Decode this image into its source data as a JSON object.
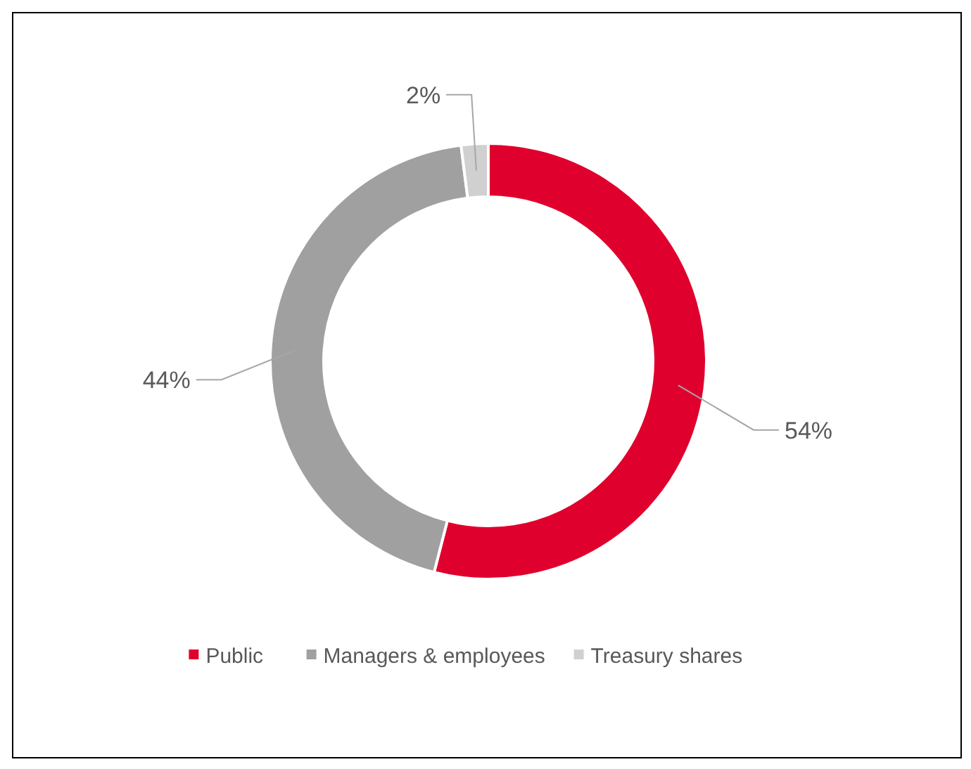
{
  "chart_data": {
    "type": "donut",
    "categories": [
      "Public",
      "Managers & employees",
      "Treasury shares"
    ],
    "values": [
      54,
      44,
      2
    ],
    "colors": [
      "#e0002d",
      "#a0a0a0",
      "#d0d0d0"
    ],
    "value_labels": [
      "54%",
      "44%",
      "2%"
    ],
    "legend": "bottom"
  }
}
